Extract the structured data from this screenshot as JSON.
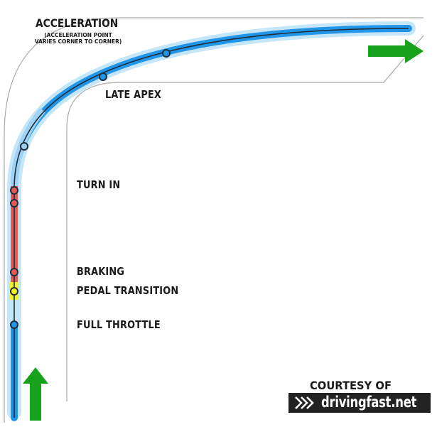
{
  "labels": {
    "acceleration": "ACCELERATION",
    "acceleration_note_line1": "(ACCELERATION POINT",
    "acceleration_note_line2": "VARIES CORNER TO CORNER)",
    "late_apex": "LATE APEX",
    "turn_in": "TURN IN",
    "braking": "BRAKING",
    "pedal_transition": "PEDAL TRANSITION",
    "full_throttle": "FULL THROTTLE"
  },
  "credit": {
    "courtesy": "COURTESY OF",
    "logo_text": "drivingfast.net"
  },
  "colors": {
    "throttle_blue": "#2196e8",
    "glow_blue": "#bfe3f8",
    "braking_red": "#e65a55",
    "transition_yellow": "#f0ef2a",
    "arrow_green": "#16a21a",
    "road_edge": "#a8a8a8",
    "logo_bg": "#222222"
  },
  "icons": {
    "start_arrow": "green-up-arrow",
    "exit_arrow": "green-right-arrow",
    "logo_chevrons": "double-chevron-right"
  }
}
